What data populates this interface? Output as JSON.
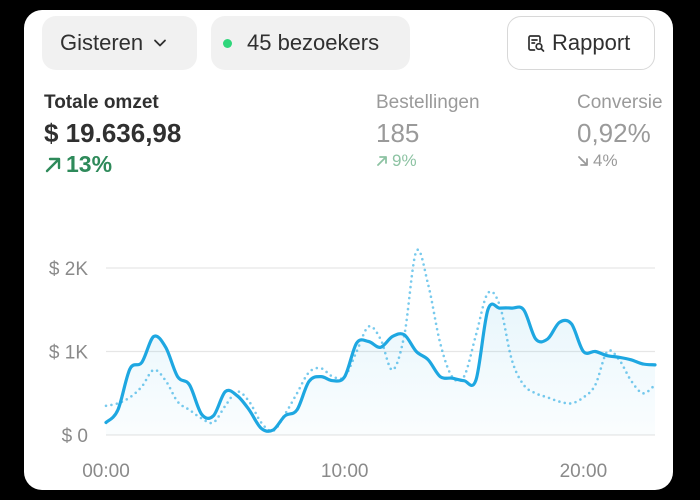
{
  "header": {
    "date_filter": "Gisteren",
    "visitors_label": "45 bezoekers",
    "report_button": "Rapport",
    "live_dot_color": "#2fd67b"
  },
  "metrics": {
    "revenue": {
      "label": "Totale omzet",
      "value": "$ 19.636,98",
      "change": "13%",
      "direction": "up"
    },
    "orders": {
      "label": "Bestellingen",
      "value": "185",
      "change": "9%",
      "direction": "up"
    },
    "conversion": {
      "label": "Conversie",
      "value": "0,92%",
      "change": "4%",
      "direction": "down"
    }
  },
  "chart_data": {
    "type": "line",
    "ylim": [
      0,
      2000
    ],
    "yticks": [
      {
        "value": 0,
        "label": "$ 0"
      },
      {
        "value": 1000,
        "label": "$ 1K"
      },
      {
        "value": 2000,
        "label": "$ 2K"
      }
    ],
    "xlim": [
      0,
      23
    ],
    "xticks": [
      {
        "value": 0,
        "label": "00:00"
      },
      {
        "value": 10,
        "label": "10:00"
      },
      {
        "value": 20,
        "label": "20:00"
      }
    ],
    "line_color": "#1ea7e1",
    "series": [
      {
        "style": "solid",
        "x": [
          0,
          0.5,
          1,
          1.5,
          2,
          2.5,
          3,
          3.5,
          4,
          4.5,
          5,
          5.5,
          6,
          6.5,
          7,
          7.5,
          8,
          8.5,
          9,
          9.5,
          10,
          10.5,
          11,
          11.5,
          12,
          12.5,
          13,
          13.5,
          14,
          14.5,
          15,
          15.5,
          16,
          16.5,
          17,
          17.5,
          18,
          18.5,
          19,
          19.5,
          20,
          20.5,
          21,
          21.5,
          22,
          22.5,
          23
        ],
        "values": [
          150,
          300,
          790,
          870,
          1180,
          1050,
          700,
          600,
          250,
          230,
          520,
          470,
          300,
          80,
          60,
          230,
          300,
          640,
          700,
          650,
          700,
          1100,
          1120,
          1050,
          1180,
          1200,
          1000,
          900,
          700,
          680,
          650,
          660,
          1500,
          1520,
          1520,
          1500,
          1150,
          1150,
          1350,
          1330,
          1000,
          1000,
          950,
          930,
          900,
          850,
          840
        ]
      },
      {
        "style": "dotted",
        "x": [
          0,
          0.5,
          1,
          1.5,
          2,
          2.5,
          3,
          3.5,
          4,
          4.5,
          5,
          5.5,
          6,
          6.5,
          7,
          7.5,
          8,
          8.5,
          9,
          9.5,
          10,
          10.5,
          11,
          11.5,
          12,
          12.5,
          13,
          13.5,
          14,
          14.5,
          15,
          15.5,
          16,
          16.5,
          17,
          17.5,
          18,
          18.5,
          19,
          19.5,
          20,
          20.5,
          21,
          21.5,
          22,
          22.5,
          23
        ],
        "values": [
          350,
          380,
          450,
          580,
          780,
          650,
          400,
          300,
          200,
          150,
          350,
          520,
          400,
          150,
          50,
          250,
          500,
          750,
          800,
          700,
          700,
          1000,
          1300,
          1150,
          780,
          1200,
          2200,
          1800,
          1100,
          700,
          700,
          1200,
          1700,
          1550,
          900,
          600,
          500,
          450,
          400,
          380,
          450,
          600,
          1000,
          900,
          650,
          500,
          600
        ]
      }
    ]
  }
}
